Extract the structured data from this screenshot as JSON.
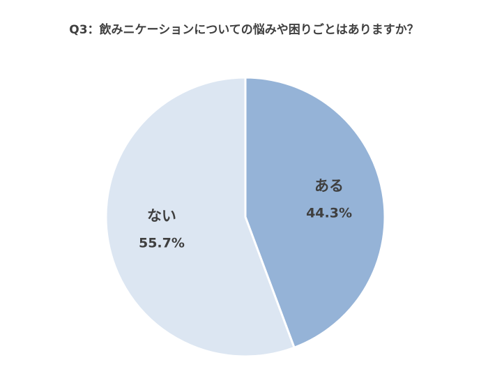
{
  "chart_data": {
    "type": "pie",
    "title": "Q3：飲みニケーションについての悩みや困りごとはありますか？",
    "slices": [
      {
        "label": "ある",
        "value": 44.3,
        "value_text": "44.3%",
        "color": "#95b3d7"
      },
      {
        "label": "ない",
        "value": 55.7,
        "value_text": "55.7%",
        "color": "#dce6f2"
      }
    ],
    "start": "12 o'clock",
    "direction": "clockwise",
    "slice_border_color": "#ffffff",
    "legend": "none"
  }
}
